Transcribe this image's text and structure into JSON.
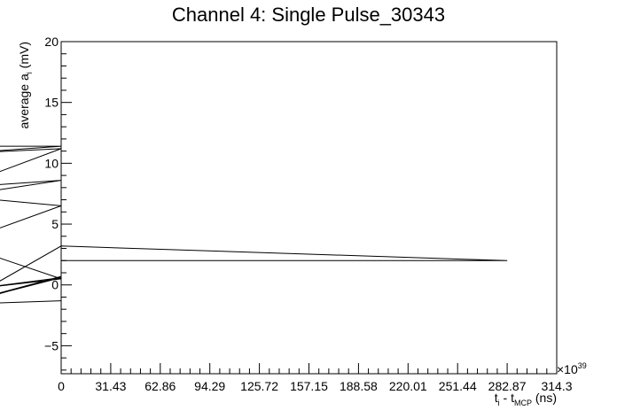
{
  "chart_data": {
    "type": "line",
    "title": "Channel 4: Single Pulse_30343",
    "xlabel": {
      "main": "t",
      "sub1": "i",
      "mid": " - t",
      "sub2": "MCP",
      "unit": " (ns)"
    },
    "ylabel": {
      "main": "average a",
      "sub": "i",
      "unit": "  (mV)"
    },
    "x_multiplier": "×10",
    "x_multiplier_exp": "39",
    "xlim": [
      0,
      314.3
    ],
    "ylim": [
      -7.3,
      20
    ],
    "x_ticks": [
      "0",
      "31.43",
      "62.86",
      "94.29",
      "125.72",
      "157.15",
      "188.58",
      "220.01",
      "251.44",
      "282.87",
      "314.3"
    ],
    "y_ticks": [
      "−5",
      "0",
      "5",
      "10",
      "15",
      "20"
    ],
    "series": [
      {
        "color": "#000000",
        "points": [
          [
            -66.2,
            11.4
          ],
          [
            0.0,
            11.4
          ],
          [
            -66.2,
            10.8
          ],
          [
            0.0,
            11.2
          ],
          [
            -66.2,
            8.0
          ],
          [
            0.0,
            8.6
          ],
          [
            -66.2,
            7.3
          ],
          [
            0.0,
            6.5
          ],
          [
            -66.2,
            3.4
          ],
          [
            0.0,
            0.5
          ],
          [
            -66.2,
            -0.5
          ],
          [
            0.0,
            0.6
          ],
          [
            -66.2,
            -1.6
          ],
          [
            0.0,
            -1.3
          ],
          [
            -66.2,
            -1.6
          ],
          [
            0.0,
            0.7
          ],
          [
            -66.2,
            -1.7
          ],
          [
            0.0,
            3.2
          ],
          [
            282.9,
            2.0
          ],
          [
            0.0,
            2.0
          ],
          [
            282.9,
            2.0
          ]
        ]
      }
    ]
  }
}
